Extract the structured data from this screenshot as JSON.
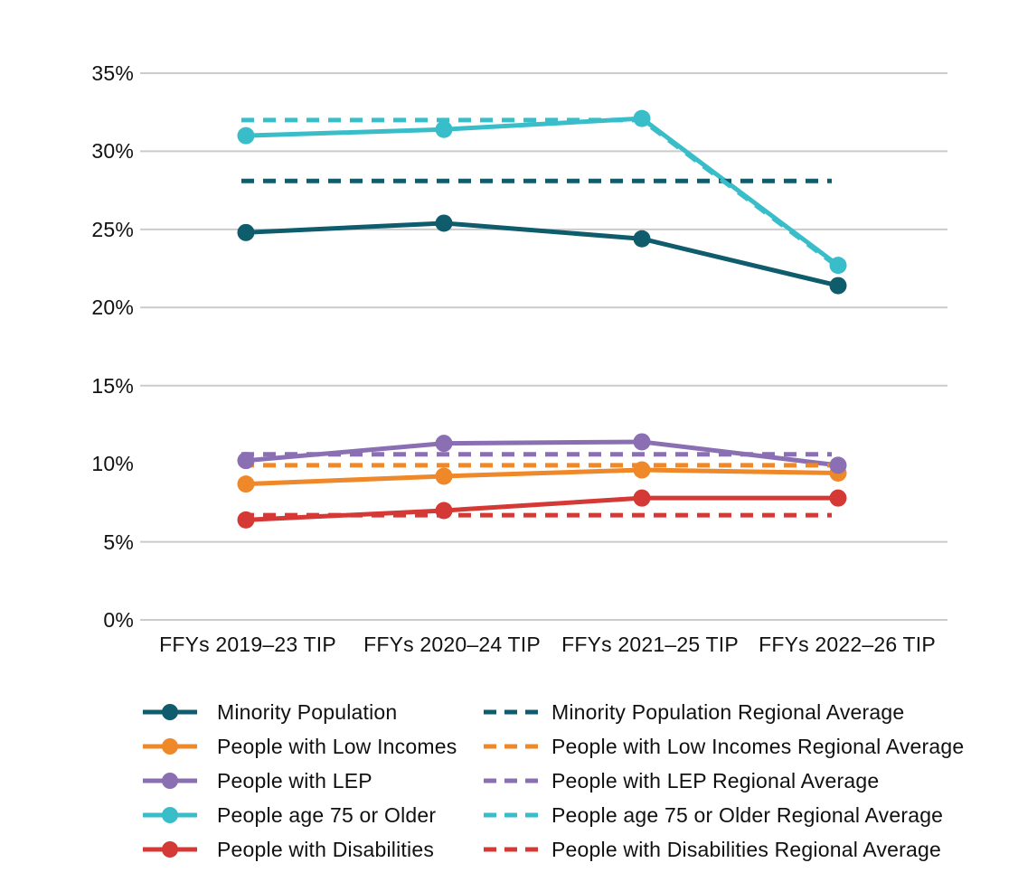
{
  "chart_data": {
    "type": "line",
    "title": "",
    "categories": [
      "FFYs 2019–23 TIP",
      "FFYs 2020–24 TIP",
      "FFYs 2021–25 TIP",
      "FFYs 2022–26 TIP"
    ],
    "y_axis": {
      "unit": "%",
      "min": 0,
      "max": 35,
      "ticks": [
        "35%",
        "30%",
        "25%",
        "20%",
        "15%",
        "10%",
        "5%",
        "0%"
      ],
      "tick_values": [
        35,
        30,
        25,
        20,
        15,
        10,
        5,
        0
      ],
      "gridline_values": [
        35,
        30,
        25,
        20,
        15,
        5,
        0
      ]
    },
    "grid": "horizontal-only",
    "legend_position": "bottom-two-columns",
    "series": [
      {
        "id": "minority-population",
        "label": "Minority Population",
        "color": "#0F5C6C",
        "style": "solid",
        "marker": "circle",
        "values": [
          24.8,
          25.4,
          24.4,
          21.4
        ]
      },
      {
        "id": "low-incomes",
        "label": "People with Low Incomes",
        "color": "#EE8829",
        "style": "solid",
        "marker": "circle",
        "values": [
          8.7,
          9.2,
          9.6,
          9.4
        ]
      },
      {
        "id": "lep",
        "label": "People with LEP",
        "color": "#8A6FB3",
        "style": "solid",
        "marker": "circle",
        "values": [
          10.2,
          11.3,
          11.4,
          9.9
        ]
      },
      {
        "id": "age-75-older",
        "label": "People age 75 or Older",
        "color": "#39BEC9",
        "style": "solid",
        "marker": "circle",
        "values": [
          31.0,
          31.4,
          32.1,
          22.7
        ]
      },
      {
        "id": "disabilities",
        "label": "People with Disabilities",
        "color": "#D53935",
        "style": "solid",
        "marker": "circle",
        "values": [
          6.4,
          7.0,
          7.8,
          7.8
        ]
      }
    ],
    "regional_averages": [
      {
        "id": "minority-population-regional-average",
        "label": "Minority Population Regional Average",
        "color": "#0F5C6C",
        "style": "dashed",
        "values": [
          28.1,
          28.1,
          28.1,
          28.1
        ]
      },
      {
        "id": "low-incomes-regional-average",
        "label": "People with Low Incomes Regional Average",
        "color": "#EE8829",
        "style": "dashed",
        "values": [
          9.9,
          9.9,
          9.9,
          9.9
        ]
      },
      {
        "id": "lep-regional-average",
        "label": "People with LEP Regional Average",
        "color": "#8A6FB3",
        "style": "dashed",
        "values": [
          10.6,
          10.6,
          10.6,
          10.6
        ]
      },
      {
        "id": "age-75-older-regional-average",
        "label": "People age 75 or Older Regional Average",
        "color": "#39BEC9",
        "style": "dashed",
        "values": [
          32.0,
          32.0,
          32.0,
          22.9
        ]
      },
      {
        "id": "disabilities-regional-average",
        "label": "People with Disabilities Regional Average",
        "color": "#D53935",
        "style": "dashed",
        "values": [
          6.7,
          6.7,
          6.7,
          6.7
        ]
      }
    ],
    "grid_color": "#CBCBCB",
    "text_color": "#111111",
    "background_color": "#FFFFFF"
  }
}
